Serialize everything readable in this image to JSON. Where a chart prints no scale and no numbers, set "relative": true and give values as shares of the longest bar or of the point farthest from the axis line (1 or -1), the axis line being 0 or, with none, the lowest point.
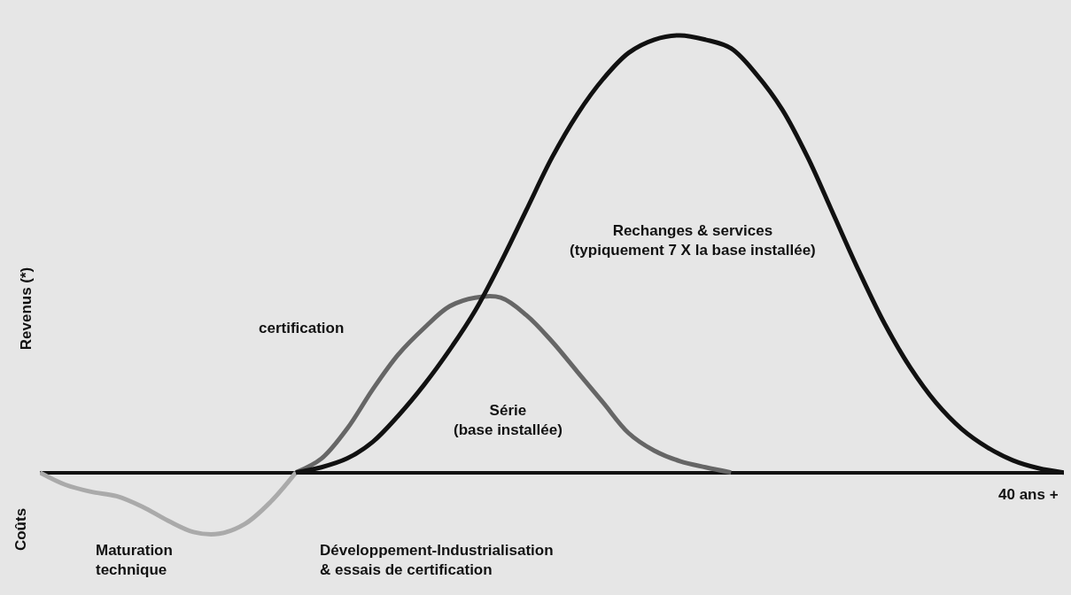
{
  "chart_data": {
    "type": "line",
    "relative": true,
    "ylabel": "Revenus (*)",
    "categories": [
      null,
      null,
      null,
      null,
      null,
      null,
      null,
      null,
      null,
      null,
      null,
      null,
      null,
      null,
      null,
      null,
      null,
      null,
      null,
      null,
      null,
      null,
      null,
      null,
      null,
      null,
      null,
      null,
      null,
      null,
      null,
      null,
      null,
      null,
      null,
      null,
      null,
      null,
      null,
      null,
      null
    ],
    "series": [
      {
        "color": "#aaaaaa",
        "values": [
          0,
          -0.028,
          -0.044,
          -0.054,
          -0.078,
          -0.11,
          -0.136,
          -0.14,
          -0.118,
          -0.068,
          0,
          null,
          null,
          null,
          null,
          null,
          null,
          null,
          null,
          null,
          null,
          null,
          null,
          null,
          null,
          null,
          null,
          null,
          null,
          null,
          null,
          null,
          null,
          null,
          null,
          null,
          null,
          null,
          null,
          null,
          null
        ]
      },
      {
        "color": "#666666",
        "values": [
          null,
          null,
          null,
          null,
          null,
          null,
          null,
          null,
          null,
          null,
          0,
          0.032,
          0.1,
          0.19,
          0.27,
          0.33,
          0.38,
          0.4,
          0.4,
          0.36,
          0.3,
          0.23,
          0.16,
          0.09,
          0.05,
          0.026,
          0.012,
          0,
          null,
          null,
          null,
          null,
          null,
          null,
          null,
          null,
          null,
          null,
          null,
          null,
          null
        ]
      },
      {
        "color": "#111111",
        "values": [
          null,
          null,
          null,
          null,
          null,
          null,
          null,
          null,
          null,
          null,
          0,
          0.012,
          0.032,
          0.07,
          0.13,
          0.2,
          0.28,
          0.37,
          0.48,
          0.6,
          0.72,
          0.82,
          0.9,
          0.96,
          0.99,
          1,
          0.99,
          0.97,
          0.91,
          0.83,
          0.72,
          0.59,
          0.46,
          0.34,
          0.24,
          0.16,
          0.1,
          0.058,
          0.028,
          0.01,
          0
        ]
      }
    ],
    "annotations": [
      "certification",
      "Rechanges & services\n(typiquement 7 X la base installée)",
      "Série\n(base installée)",
      "40 ans +",
      "Coûts",
      "Maturation\ntechnique",
      "Développement-Industrialisation\n& essais de certification"
    ],
    "grid": false,
    "marker": "none",
    "line_style": "solid"
  }
}
